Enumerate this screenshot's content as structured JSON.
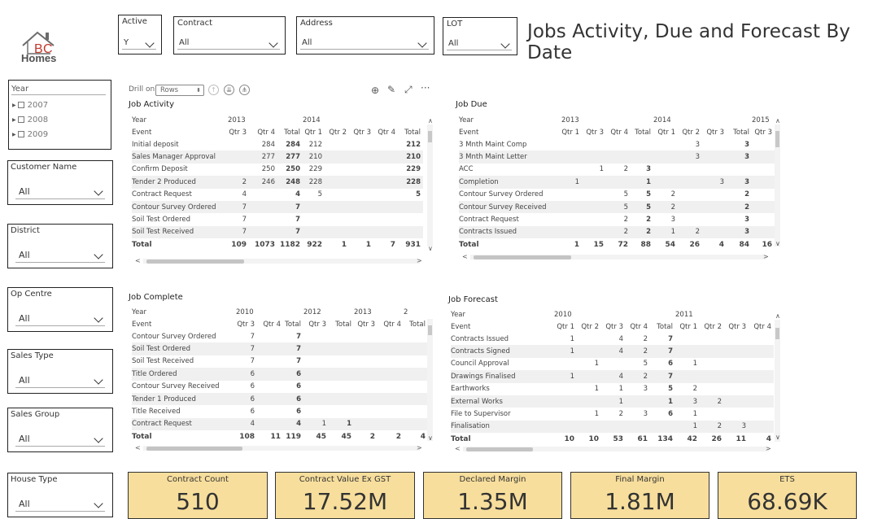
{
  "logo": {
    "text": "Homes"
  },
  "title": "Jobs Activity, Due and Forecast By Date",
  "top_slicers": {
    "active": {
      "label": "Active",
      "value": "Y"
    },
    "contract": {
      "label": "Contract",
      "value": "All"
    },
    "address": {
      "label": "Address",
      "value": "All"
    },
    "lot": {
      "label": "LOT",
      "value": "All"
    }
  },
  "year_slicer": {
    "header": "Year",
    "items": [
      "2007",
      "2008",
      "2009"
    ]
  },
  "left_slicers": [
    {
      "label": "Customer Name",
      "value": "All"
    },
    {
      "label": "District",
      "value": "All"
    },
    {
      "label": "Op Centre",
      "value": "All"
    },
    {
      "label": "Sales Type",
      "value": "All"
    },
    {
      "label": "Sales Group",
      "value": "All"
    },
    {
      "label": "House Type",
      "value": "All"
    }
  ],
  "drill": {
    "label": "Drill on",
    "value": "Rows"
  },
  "job_activity": {
    "title": "Job Activity",
    "years": [
      "Year",
      "2013",
      "2014"
    ],
    "cols": [
      "Event",
      "Qtr 3",
      "Qtr 4",
      "Total",
      "Qtr 1",
      "Qtr 2",
      "Qtr 3",
      "Qtr 4",
      "Total"
    ],
    "rows": [
      [
        "Initial deposit",
        "",
        "284",
        "284",
        "212",
        "",
        "",
        "",
        "212"
      ],
      [
        "Sales Manager Approval",
        "",
        "277",
        "277",
        "210",
        "",
        "",
        "",
        "210"
      ],
      [
        "Confirm Deposit",
        "",
        "250",
        "250",
        "229",
        "",
        "",
        "",
        "229"
      ],
      [
        "Tender 2 Produced",
        "2",
        "246",
        "248",
        "228",
        "",
        "",
        "",
        "228"
      ],
      [
        "Contract Request",
        "4",
        "",
        "4",
        "5",
        "",
        "",
        "",
        "5"
      ],
      [
        "Contour Survey Ordered",
        "7",
        "",
        "7",
        "",
        "",
        "",
        "",
        ""
      ],
      [
        "Soil Test Ordered",
        "7",
        "",
        "7",
        "",
        "",
        "",
        "",
        ""
      ],
      [
        "Soil Test Received",
        "7",
        "",
        "7",
        "",
        "",
        "",
        "",
        ""
      ]
    ],
    "total": [
      "Total",
      "109",
      "1073",
      "1182",
      "922",
      "1",
      "1",
      "7",
      "931"
    ]
  },
  "job_due": {
    "title": "Job Due",
    "years": [
      "Year",
      "2013",
      "2014",
      "2015"
    ],
    "cols": [
      "Event",
      "Qtr 1",
      "Qtr 3",
      "Qtr 4",
      "Total",
      "Qtr 1",
      "Qtr 2",
      "Qtr 3",
      "Total",
      "Qtr 3"
    ],
    "rows": [
      [
        "3 Mnth Maint Comp",
        "",
        "",
        "",
        "",
        "",
        "3",
        "",
        "3",
        ""
      ],
      [
        "3 Mnth Maint Letter",
        "",
        "",
        "",
        "",
        "",
        "3",
        "",
        "3",
        ""
      ],
      [
        "ACC",
        "",
        "1",
        "2",
        "3",
        "",
        "",
        "",
        "",
        ""
      ],
      [
        "Completion",
        "1",
        "",
        "",
        "1",
        "",
        "",
        "3",
        "3",
        ""
      ],
      [
        "Contour Survey Ordered",
        "",
        "",
        "5",
        "5",
        "2",
        "",
        "",
        "2",
        ""
      ],
      [
        "Contour Survey Received",
        "",
        "",
        "5",
        "5",
        "2",
        "",
        "",
        "2",
        ""
      ],
      [
        "Contract Request",
        "",
        "",
        "2",
        "2",
        "3",
        "",
        "",
        "3",
        ""
      ],
      [
        "Contracts Issued",
        "",
        "",
        "2",
        "2",
        "1",
        "2",
        "",
        "3",
        ""
      ]
    ],
    "total": [
      "Total",
      "1",
      "15",
      "72",
      "88",
      "54",
      "26",
      "4",
      "84",
      "16"
    ]
  },
  "job_complete": {
    "title": "Job Complete",
    "years": [
      "Year",
      "2010",
      "2012",
      "2013",
      "2"
    ],
    "cols": [
      "Event",
      "Qtr 3",
      "Qtr 4",
      "Total",
      "Qtr 3",
      "Total",
      "Qtr 3",
      "Qtr 4",
      "Total"
    ],
    "rows": [
      [
        "Contour Survey Ordered",
        "7",
        "",
        "7",
        "",
        "",
        "",
        "",
        ""
      ],
      [
        "Soil Test Ordered",
        "7",
        "",
        "7",
        "",
        "",
        "",
        "",
        ""
      ],
      [
        "Soil Test Received",
        "7",
        "",
        "7",
        "",
        "",
        "",
        "",
        ""
      ],
      [
        "Title Ordered",
        "6",
        "",
        "6",
        "",
        "",
        "",
        "",
        ""
      ],
      [
        "Contour Survey Received",
        "6",
        "",
        "6",
        "",
        "",
        "",
        "",
        ""
      ],
      [
        "Tender 1 Produced",
        "6",
        "",
        "6",
        "",
        "",
        "",
        "",
        ""
      ],
      [
        "Title Received",
        "6",
        "",
        "6",
        "",
        "",
        "",
        "",
        ""
      ],
      [
        "Contract Request",
        "4",
        "",
        "4",
        "1",
        "1",
        "",
        "",
        ""
      ]
    ],
    "total": [
      "Total",
      "108",
      "11",
      "119",
      "45",
      "45",
      "2",
      "2",
      "4"
    ]
  },
  "job_forecast": {
    "title": "Job Forecast",
    "years": [
      "Year",
      "2010",
      "2011"
    ],
    "cols": [
      "Event",
      "Qtr 1",
      "Qtr 2",
      "Qtr 3",
      "Qtr 4",
      "Total",
      "Qtr 1",
      "Qtr 2",
      "Qtr 3",
      "Qtr 4"
    ],
    "rows": [
      [
        "Contracts Issued",
        "1",
        "",
        "4",
        "2",
        "7",
        "",
        "",
        "",
        ""
      ],
      [
        "Contracts Signed",
        "1",
        "",
        "4",
        "2",
        "7",
        "",
        "",
        "",
        ""
      ],
      [
        "Council Approval",
        "",
        "1",
        "",
        "5",
        "6",
        "1",
        "",
        "",
        ""
      ],
      [
        "Drawings Finalised",
        "1",
        "",
        "4",
        "2",
        "7",
        "",
        "",
        "",
        ""
      ],
      [
        "Earthworks",
        "",
        "1",
        "1",
        "3",
        "5",
        "2",
        "",
        "",
        ""
      ],
      [
        "External Works",
        "",
        "",
        "1",
        "",
        "1",
        "3",
        "2",
        "",
        ""
      ],
      [
        "File to Supervisor",
        "",
        "1",
        "2",
        "3",
        "6",
        "1",
        "",
        "",
        ""
      ],
      [
        "Finalisation",
        "",
        "",
        "",
        "",
        "",
        "1",
        "2",
        "3",
        ""
      ]
    ],
    "total": [
      "Total",
      "10",
      "10",
      "53",
      "61",
      "134",
      "42",
      "26",
      "11",
      "4"
    ]
  },
  "cards": [
    {
      "title": "Contract Count",
      "value": "510"
    },
    {
      "title": "Contract Value Ex GST",
      "value": "17.52M"
    },
    {
      "title": "Declared Margin",
      "value": "1.35M"
    },
    {
      "title": "Final Margin",
      "value": "1.81M"
    },
    {
      "title": "ETS",
      "value": "68.69K"
    }
  ],
  "colors": {
    "card_bg": "#f7de9c",
    "logo_red": "#c0392b",
    "logo_grey": "#6b6b6b"
  }
}
